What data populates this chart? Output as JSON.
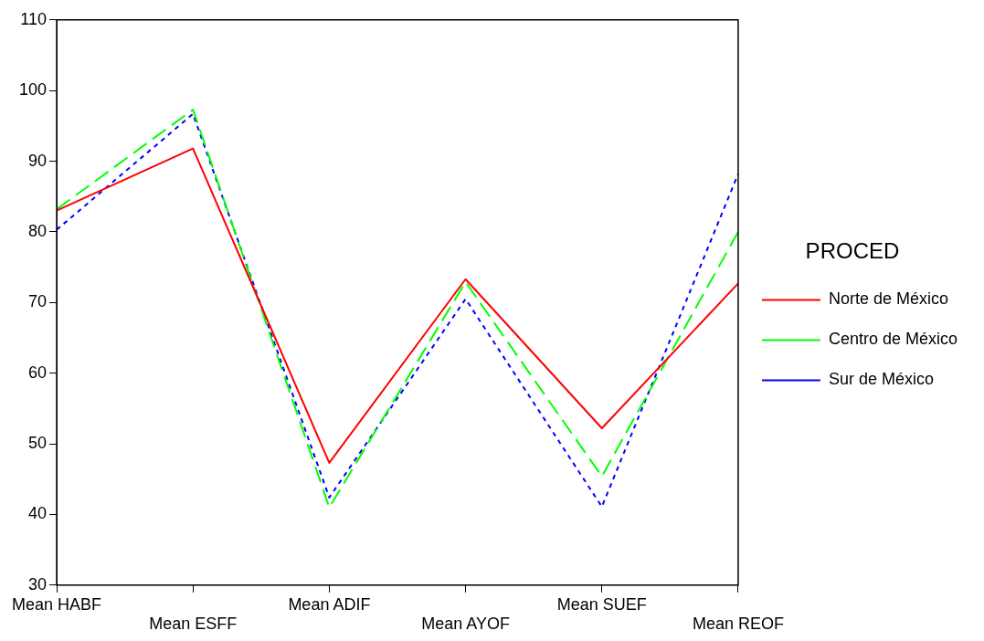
{
  "chart_data": {
    "type": "line",
    "legend_title": "PROCED",
    "categories": [
      "Mean HABF",
      "Mean ESFF",
      "Mean ADIF",
      "Mean AYOF",
      "Mean SUEF",
      "Mean REOF"
    ],
    "series": [
      {
        "name": "Norte de México",
        "color": "#ff0000",
        "line_style": "solid",
        "values": [
          83,
          91.8,
          47.3,
          73.3,
          52.2,
          72.7
        ]
      },
      {
        "name": "Centro de México",
        "color": "#00ff00",
        "line_style": "dashed",
        "values": [
          83.2,
          97.3,
          41,
          72.9,
          45.4,
          80
        ]
      },
      {
        "name": "Sur de México",
        "color": "#0000ff",
        "line_style": "dotted",
        "values": [
          80.3,
          96.7,
          42.4,
          70.5,
          41.1,
          88.2
        ]
      }
    ],
    "ylim": [
      30,
      110
    ],
    "yticks": [
      30,
      40,
      50,
      60,
      70,
      80,
      90,
      100,
      110
    ],
    "grid": false,
    "legend": "right",
    "marker": "none"
  }
}
